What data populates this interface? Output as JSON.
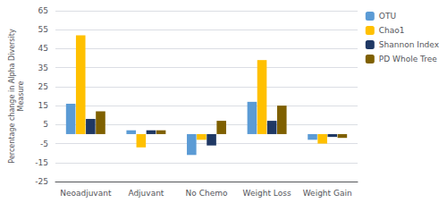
{
  "chart_data": {
    "type": "bar",
    "categories": [
      "Neoadjuvant",
      "Adjuvant",
      "No Chemo",
      "Weight Loss",
      "Weight Gain"
    ],
    "series": [
      {
        "name": "OTU",
        "color": "#5B9BD5",
        "values": [
          16,
          2,
          -11,
          17,
          -3
        ]
      },
      {
        "name": "Chao1",
        "color": "#FFC000",
        "values": [
          52,
          -7,
          -3,
          39,
          -5
        ]
      },
      {
        "name": "Shannon Index",
        "color": "#1F3864",
        "values": [
          8,
          2,
          -6,
          7,
          -1.5
        ]
      },
      {
        "name": "PD Whole Tree",
        "color": "#7F6000",
        "values": [
          12,
          2,
          7,
          15,
          -2
        ]
      }
    ],
    "ylabel": "Percentage change in Alpha Diversity\nMeasure",
    "ylim": [
      -25,
      65
    ],
    "yticks": [
      -25,
      -15,
      -5,
      5,
      15,
      25,
      35,
      45,
      55,
      65
    ],
    "grid": true,
    "legend": "upper right"
  }
}
